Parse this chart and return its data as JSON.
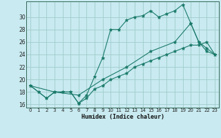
{
  "xlabel": "Humidex (Indice chaleur)",
  "bg_color": "#c8eaf0",
  "grid_color": "#a0cccc",
  "line_color": "#1a7a6a",
  "xlim": [
    -0.5,
    23.5
  ],
  "ylim": [
    15.5,
    32.5
  ],
  "yticks": [
    16,
    18,
    20,
    22,
    24,
    26,
    28,
    30
  ],
  "xticks": [
    0,
    1,
    2,
    3,
    4,
    5,
    6,
    7,
    8,
    9,
    10,
    11,
    12,
    13,
    14,
    15,
    16,
    17,
    18,
    19,
    20,
    21,
    22,
    23
  ],
  "line1_x": [
    0,
    1,
    2,
    3,
    4,
    5,
    6,
    7,
    8,
    9,
    10,
    11,
    12,
    13,
    14,
    15,
    16,
    17,
    18,
    19,
    20,
    21,
    22,
    23
  ],
  "line1_y": [
    19,
    18,
    17,
    18,
    18,
    18,
    16.2,
    17.5,
    20.5,
    23.5,
    28,
    28,
    29.5,
    30,
    30.2,
    31,
    30,
    30.5,
    31,
    32,
    29,
    26,
    24.5,
    24
  ],
  "line2_x": [
    0,
    1,
    2,
    3,
    4,
    5,
    6,
    7,
    8,
    9,
    10,
    11,
    12,
    13,
    14,
    15,
    16,
    17,
    18,
    19,
    20,
    21,
    22,
    23
  ],
  "line2_y": [
    19,
    18,
    17,
    18,
    18,
    18,
    16.2,
    17,
    18.5,
    19,
    20,
    20.5,
    21,
    22,
    22.5,
    23,
    23.5,
    24,
    24.5,
    25,
    25.5,
    25.5,
    26,
    24
  ],
  "line3_x": [
    0,
    3,
    6,
    9,
    12,
    15,
    18,
    20,
    21,
    22,
    23
  ],
  "line3_y": [
    19,
    18,
    17.5,
    20,
    22,
    24.5,
    26,
    29,
    26,
    25,
    24
  ]
}
